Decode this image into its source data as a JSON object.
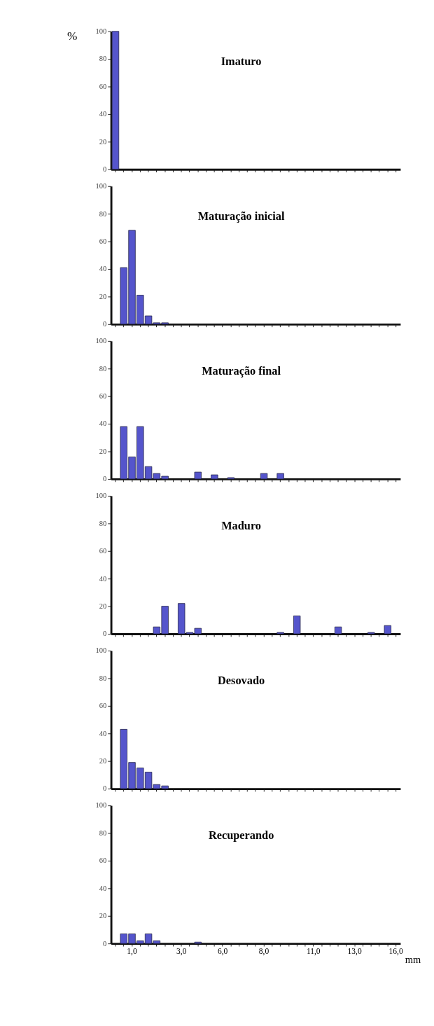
{
  "chart_data": [
    {
      "type": "bar",
      "title": "Imaturo",
      "ylabel": "%",
      "categories": [
        null,
        null,
        "1,0",
        null,
        null,
        null,
        null,
        null,
        "3,0",
        null,
        null,
        null,
        null,
        "6,0",
        null,
        null,
        null,
        null,
        "8,0",
        null,
        null,
        null,
        null,
        null,
        "11,0",
        null,
        null,
        null,
        null,
        "13,0",
        null,
        null,
        null,
        null,
        "16,0"
      ],
      "values": [
        100,
        0,
        0,
        0,
        0,
        0,
        0,
        0,
        0,
        0,
        0,
        0,
        0,
        0,
        0,
        0,
        0,
        0,
        0,
        0,
        0,
        0,
        0,
        0,
        0,
        0,
        0,
        0,
        0,
        0,
        0,
        0,
        0,
        0,
        0
      ],
      "color": "#5555cc",
      "ylim": [
        0,
        100
      ],
      "yticks": [
        0,
        20,
        40,
        60,
        80,
        100
      ],
      "tick_labels": "y",
      "grid": false
    },
    {
      "type": "bar",
      "title": "Maturação inicial",
      "categories": [
        null,
        null,
        "1,0",
        null,
        null,
        null,
        null,
        null,
        "3,0",
        null,
        null,
        null,
        null,
        "6,0",
        null,
        null,
        null,
        null,
        "8,0",
        null,
        null,
        null,
        null,
        null,
        "11,0",
        null,
        null,
        null,
        null,
        "13,0",
        null,
        null,
        null,
        null,
        "16,0"
      ],
      "values": [
        0,
        41,
        68,
        21,
        6,
        1,
        1,
        0,
        0,
        0,
        0,
        0,
        0,
        0,
        0,
        0,
        0,
        0,
        0,
        0,
        0,
        0,
        0,
        0,
        0,
        0,
        0,
        0,
        0,
        0,
        0,
        0,
        0,
        0,
        0
      ],
      "color": "#5555cc",
      "ylim": [
        0,
        100
      ],
      "yticks": [
        0,
        20,
        40,
        60,
        80,
        100
      ],
      "tick_labels": "y",
      "grid": false
    },
    {
      "type": "bar",
      "title": "Maturação final",
      "categories": [
        null,
        null,
        "1,0",
        null,
        null,
        null,
        null,
        null,
        "3,0",
        null,
        null,
        null,
        null,
        "6,0",
        null,
        null,
        null,
        null,
        "8,0",
        null,
        null,
        null,
        null,
        null,
        "11,0",
        null,
        null,
        null,
        null,
        "13,0",
        null,
        null,
        null,
        null,
        "16,0"
      ],
      "values": [
        0,
        38,
        16,
        38,
        9,
        4,
        2,
        0,
        0,
        0,
        5,
        0,
        3,
        0,
        1,
        0,
        0,
        0,
        4,
        0,
        4,
        0,
        0,
        0,
        0,
        0,
        0,
        0,
        0,
        0,
        0,
        0,
        0,
        0,
        0
      ],
      "color": "#5555cc",
      "ylim": [
        0,
        100
      ],
      "yticks": [
        0,
        20,
        40,
        60,
        80,
        100
      ],
      "tick_labels": "y",
      "grid": false
    },
    {
      "type": "bar",
      "title": "Maduro",
      "categories": [
        null,
        null,
        "1,0",
        null,
        null,
        null,
        null,
        null,
        "3,0",
        null,
        null,
        null,
        null,
        "6,0",
        null,
        null,
        null,
        null,
        "8,0",
        null,
        null,
        null,
        null,
        null,
        "11,0",
        null,
        null,
        null,
        null,
        "13,0",
        null,
        null,
        null,
        null,
        "16,0"
      ],
      "values": [
        0,
        0,
        0,
        0,
        0,
        5,
        20,
        0,
        22,
        1,
        4,
        0,
        0,
        0,
        0,
        0,
        0,
        0,
        0,
        0,
        1,
        0,
        13,
        0,
        0,
        0,
        0,
        5,
        0,
        0,
        0,
        1,
        0,
        6,
        0
      ],
      "color": "#5555cc",
      "ylim": [
        0,
        100
      ],
      "yticks": [
        0,
        20,
        40,
        60,
        80,
        100
      ],
      "tick_labels": "y",
      "grid": false
    },
    {
      "type": "bar",
      "title": "Desovado",
      "categories": [
        null,
        null,
        "1,0",
        null,
        null,
        null,
        null,
        null,
        "3,0",
        null,
        null,
        null,
        null,
        "6,0",
        null,
        null,
        null,
        null,
        "8,0",
        null,
        null,
        null,
        null,
        null,
        "11,0",
        null,
        null,
        null,
        null,
        "13,0",
        null,
        null,
        null,
        null,
        "16,0"
      ],
      "values": [
        0,
        43,
        19,
        15,
        12,
        3,
        2,
        0,
        0,
        0,
        0,
        0,
        0,
        0,
        0,
        0,
        0,
        0,
        0,
        0,
        0,
        0,
        0,
        0,
        0,
        0,
        0,
        0,
        0,
        0,
        0,
        0,
        0,
        0,
        0
      ],
      "color": "#5555cc",
      "ylim": [
        0,
        100
      ],
      "yticks": [
        0,
        20,
        40,
        60,
        80,
        100
      ],
      "tick_labels": "y",
      "grid": false
    },
    {
      "type": "bar",
      "title": "Recuperando",
      "xlabel": "mm",
      "categories": [
        null,
        null,
        "1,0",
        null,
        null,
        null,
        null,
        null,
        "3,0",
        null,
        null,
        null,
        null,
        "6,0",
        null,
        null,
        null,
        null,
        "8,0",
        null,
        null,
        null,
        null,
        null,
        "11,0",
        null,
        null,
        null,
        null,
        "13,0",
        null,
        null,
        null,
        null,
        "16,0"
      ],
      "values": [
        0,
        7,
        7,
        2,
        7,
        2,
        0,
        0,
        0,
        0,
        1,
        0,
        0,
        0,
        0,
        0,
        0,
        0,
        0,
        0,
        0,
        0,
        0,
        0,
        0,
        0,
        0,
        0,
        0,
        0,
        0,
        0,
        0,
        0,
        0
      ],
      "color": "#5555cc",
      "ylim": [
        0,
        100
      ],
      "yticks": [
        0,
        20,
        40,
        60,
        80,
        100
      ],
      "grid": false
    }
  ]
}
